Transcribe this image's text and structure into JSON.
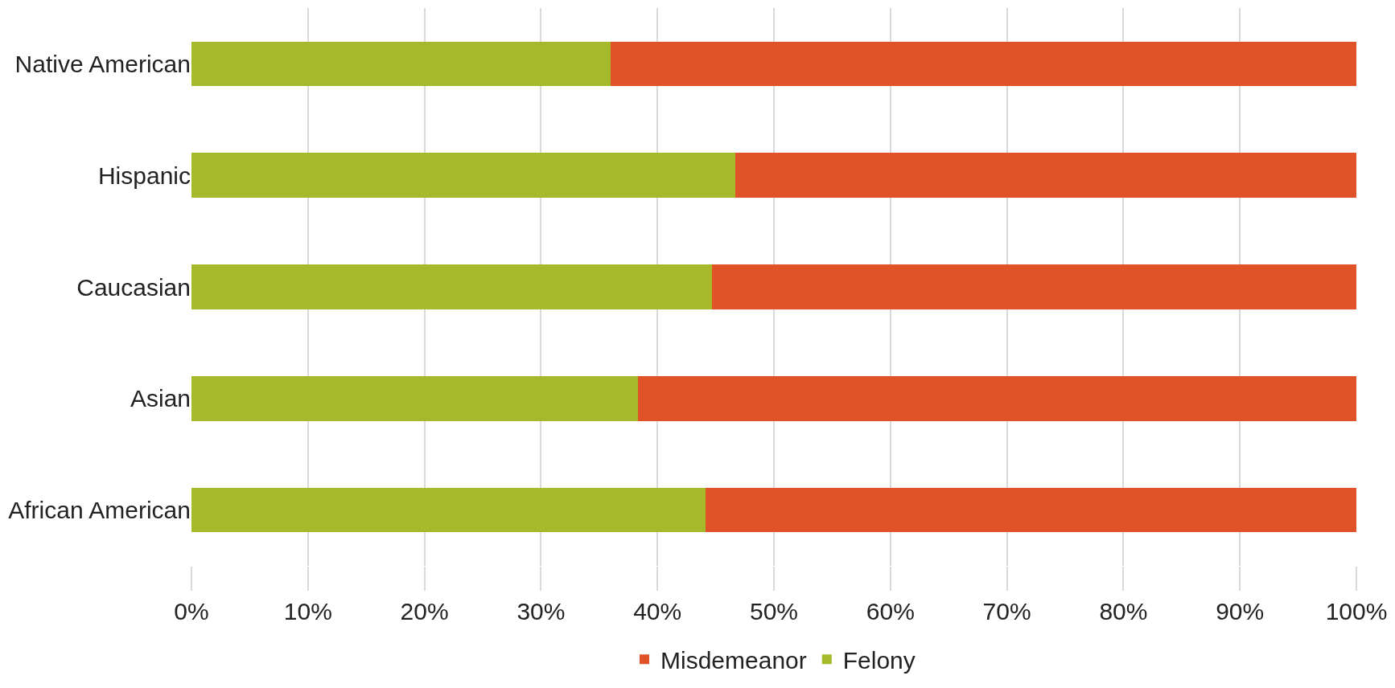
{
  "chart_data": {
    "type": "bar",
    "orientation": "horizontal",
    "stacked": true,
    "categories": [
      "Native American",
      "Hispanic",
      "Caucasian",
      "Asian",
      "African American"
    ],
    "series": [
      {
        "name": "Felony",
        "color": "#a5b92a",
        "values": [
          36.0,
          46.7,
          44.7,
          38.3,
          44.1
        ]
      },
      {
        "name": "Misdemeanor",
        "color": "#e05328",
        "values": [
          64.0,
          53.3,
          55.3,
          61.7,
          55.9
        ]
      }
    ],
    "xlim": [
      0,
      100
    ],
    "xticks": [
      {
        "value": 0,
        "label": "0%"
      },
      {
        "value": 10,
        "label": "10%"
      },
      {
        "value": 20,
        "label": "20%"
      },
      {
        "value": 30,
        "label": "30%"
      },
      {
        "value": 40,
        "label": "40%"
      },
      {
        "value": 50,
        "label": "50%"
      },
      {
        "value": 60,
        "label": "60%"
      },
      {
        "value": 70,
        "label": "70%"
      },
      {
        "value": 80,
        "label": "80%"
      },
      {
        "value": 90,
        "label": "90%"
      },
      {
        "value": 100,
        "label": "100%"
      }
    ],
    "grid": "x",
    "legend": "bottom"
  }
}
